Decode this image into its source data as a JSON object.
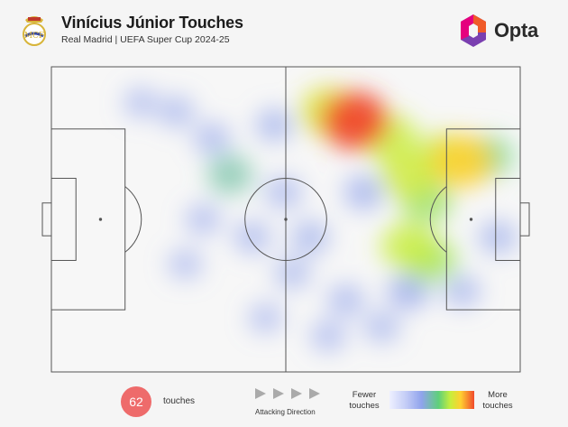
{
  "header": {
    "title": "Vinícius Júnior Touches",
    "subtitle": "Real Madrid | UEFA Super Cup 2024-25",
    "crest_icon": "real-madrid-crest-icon",
    "brand_logo": "opta-logo-icon",
    "brand_name": "Opta",
    "brand_colors": [
      "#f05a28",
      "#e5007e",
      "#7a3fb0"
    ]
  },
  "chart_data": {
    "type": "heatmap",
    "title": "Vinícius Júnior Touches",
    "subtitle": "Real Madrid | UEFA Super Cup 2024-25",
    "attacking_direction": "left-to-right",
    "pitch": {
      "length": 105,
      "width": 68
    },
    "xlim": [
      0,
      105
    ],
    "ylim": [
      0,
      68
    ],
    "hotspots": [
      {
        "x": 68,
        "y": 56,
        "intensity": 1.0
      },
      {
        "x": 62,
        "y": 58,
        "intensity": 0.75
      },
      {
        "x": 76,
        "y": 52,
        "intensity": 0.7
      },
      {
        "x": 80,
        "y": 44,
        "intensity": 0.72
      },
      {
        "x": 84,
        "y": 38,
        "intensity": 0.6
      },
      {
        "x": 88,
        "y": 48,
        "intensity": 0.68
      },
      {
        "x": 92,
        "y": 47,
        "intensity": 0.85
      },
      {
        "x": 98,
        "y": 48,
        "intensity": 0.5
      },
      {
        "x": 80,
        "y": 28,
        "intensity": 0.7
      },
      {
        "x": 85,
        "y": 25,
        "intensity": 0.62
      },
      {
        "x": 80,
        "y": 18,
        "intensity": 0.35
      },
      {
        "x": 40,
        "y": 44,
        "intensity": 0.45
      },
      {
        "x": 36,
        "y": 52,
        "intensity": 0.22
      },
      {
        "x": 28,
        "y": 58,
        "intensity": 0.2
      },
      {
        "x": 20,
        "y": 60,
        "intensity": 0.15
      },
      {
        "x": 50,
        "y": 55,
        "intensity": 0.25
      },
      {
        "x": 52,
        "y": 40,
        "intensity": 0.22
      },
      {
        "x": 58,
        "y": 30,
        "intensity": 0.25
      },
      {
        "x": 54,
        "y": 22,
        "intensity": 0.2
      },
      {
        "x": 45,
        "y": 30,
        "intensity": 0.22
      },
      {
        "x": 34,
        "y": 34,
        "intensity": 0.18
      },
      {
        "x": 30,
        "y": 24,
        "intensity": 0.15
      },
      {
        "x": 66,
        "y": 16,
        "intensity": 0.22
      },
      {
        "x": 74,
        "y": 10,
        "intensity": 0.2
      },
      {
        "x": 62,
        "y": 8,
        "intensity": 0.18
      },
      {
        "x": 92,
        "y": 18,
        "intensity": 0.22
      },
      {
        "x": 100,
        "y": 30,
        "intensity": 0.25
      },
      {
        "x": 48,
        "y": 12,
        "intensity": 0.15
      },
      {
        "x": 70,
        "y": 40,
        "intensity": 0.3
      }
    ],
    "colorscale": [
      "#eef0ff",
      "#8fa3ec",
      "#5fd07a",
      "#c8ee3c",
      "#ffd030",
      "#f04a2c"
    ]
  },
  "footer": {
    "touches_count": "62",
    "touches_label": "touches",
    "attacking_label": "Attacking Direction",
    "arrows_icon": "attacking-direction-arrows-icon",
    "fewer_label": [
      "Fewer",
      "touches"
    ],
    "more_label": [
      "More",
      "touches"
    ],
    "badge_color": "#ee6b6b"
  }
}
